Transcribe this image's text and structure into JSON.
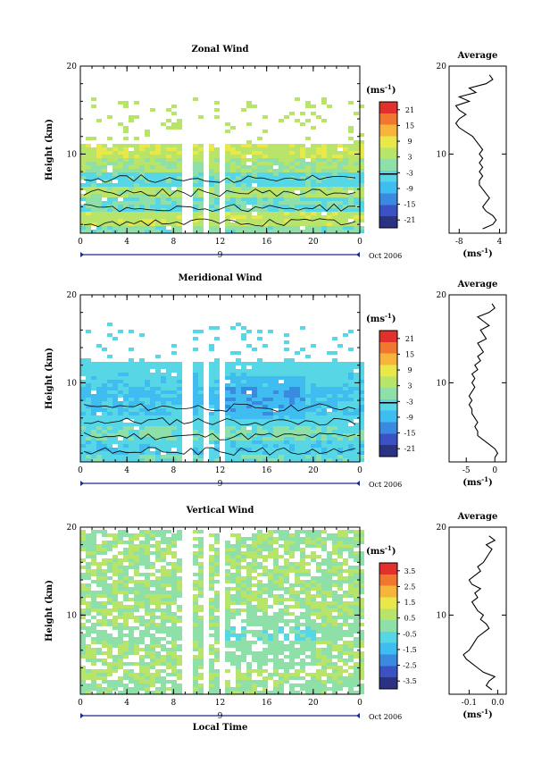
{
  "chart_data": [
    {
      "type": "heatmap",
      "title": "Zonal Wind",
      "xlabel": "",
      "ylabel": "Height (km)",
      "x_ticks": [
        "0",
        "4",
        "8",
        "12",
        "16",
        "20",
        "0"
      ],
      "xlim": [
        0,
        24
      ],
      "y_ticks": [
        "10",
        "20"
      ],
      "ylim": [
        1,
        20
      ],
      "day_marker": "9",
      "date_label": "Oct 2006",
      "colorbar": {
        "unit": "(ms",
        "unit_exp": "-1",
        "unit_close": ")",
        "ticks": [
          "21",
          "15",
          "9",
          "3",
          "-3",
          "-9",
          "-15",
          "-21"
        ],
        "range": [
          -24,
          24
        ],
        "highlight": 0
      },
      "profile": {
        "title": "Average",
        "xlabel": "(ms",
        "xlabel_exp": "-1",
        "xlabel_close": ")",
        "x_ticks": [
          "-8",
          "4"
        ],
        "x_tick_values": [
          -8,
          4
        ],
        "xlim": [
          -11,
          6
        ],
        "y_ticks": [
          "10",
          "20"
        ],
        "heights": [
          1.5,
          2.0,
          2.5,
          3.0,
          3.5,
          4.0,
          4.5,
          5.0,
          5.5,
          6.0,
          6.5,
          7.0,
          7.5,
          8.0,
          8.5,
          9.0,
          9.5,
          10.0,
          10.5,
          11.0,
          11.5,
          12.0,
          12.5,
          13.0,
          13.5,
          14.0,
          14.5,
          15.0,
          15.5,
          16.0,
          16.5,
          17.0,
          17.5,
          18.0,
          18.5,
          19.0
        ],
        "values": [
          -1,
          2,
          3,
          2,
          0,
          -1,
          0,
          1,
          0,
          -1,
          -2,
          -2,
          -1,
          -2,
          -1,
          -2,
          -1,
          -2,
          -1,
          -2,
          -3,
          -4,
          -6,
          -8,
          -9,
          -8,
          -6,
          -8,
          -9,
          -5,
          -8,
          -3,
          -5,
          0,
          2,
          1
        ]
      }
    },
    {
      "type": "heatmap",
      "title": "Meridional Wind",
      "xlabel": "",
      "ylabel": "Height (km)",
      "x_ticks": [
        "0",
        "4",
        "8",
        "12",
        "16",
        "20",
        "0"
      ],
      "xlim": [
        0,
        24
      ],
      "y_ticks": [
        "10",
        "20"
      ],
      "ylim": [
        1,
        20
      ],
      "day_marker": "9",
      "date_label": "Oct 2006",
      "colorbar": {
        "unit": "(ms",
        "unit_exp": "-1",
        "unit_close": ")",
        "ticks": [
          "21",
          "15",
          "9",
          "3",
          "-3",
          "-9",
          "-15",
          "-21"
        ],
        "range": [
          -24,
          24
        ],
        "highlight": 0
      },
      "profile": {
        "title": "Average",
        "xlabel": "(ms",
        "xlabel_exp": "-1",
        "xlabel_close": ")",
        "x_ticks": [
          "-5",
          "0"
        ],
        "x_tick_values": [
          -5,
          0
        ],
        "xlim": [
          -8,
          2
        ],
        "y_ticks": [
          "10",
          "20"
        ],
        "heights": [
          1.5,
          2.0,
          2.5,
          3.0,
          3.5,
          4.0,
          4.5,
          5.0,
          5.5,
          6.0,
          6.5,
          7.0,
          7.5,
          8.0,
          8.5,
          9.0,
          9.5,
          10.0,
          10.5,
          11.0,
          11.5,
          12.0,
          12.5,
          13.0,
          13.5,
          14.0,
          14.5,
          15.0,
          15.5,
          16.0,
          16.5,
          17.0,
          17.5,
          18.0,
          18.5,
          19.0
        ],
        "values": [
          0,
          0.5,
          0,
          -1,
          -2,
          -3,
          -3,
          -3.5,
          -3,
          -3.5,
          -4,
          -4,
          -4.5,
          -4,
          -4.5,
          -4,
          -3.5,
          -4,
          -3.5,
          -4,
          -3,
          -3.5,
          -2.5,
          -3,
          -2,
          -2.5,
          -3,
          -1.5,
          -2,
          -2.5,
          -1,
          -2,
          -3,
          -1,
          0,
          -0.5
        ]
      }
    },
    {
      "type": "heatmap",
      "title": "Vertical Wind",
      "xlabel": "Local Time",
      "ylabel": "Height (km)",
      "x_ticks": [
        "0",
        "4",
        "8",
        "12",
        "16",
        "20",
        "0"
      ],
      "xlim": [
        0,
        24
      ],
      "y_ticks": [
        "10",
        "20"
      ],
      "ylim": [
        1,
        20
      ],
      "day_marker": "9",
      "date_label": "Oct 2006",
      "colorbar": {
        "unit": "(ms",
        "unit_exp": "-1",
        "unit_close": ")",
        "ticks": [
          "3.5",
          "2.5",
          "1.5",
          "0.5",
          "-0.5",
          "-1.5",
          "-2.5",
          "-3.5"
        ],
        "range": [
          -4,
          4
        ],
        "highlight": null
      },
      "profile": {
        "title": "Average",
        "xlabel": "(ms",
        "xlabel_exp": "-1",
        "xlabel_close": ")",
        "x_ticks": [
          "-0.1",
          "0.0"
        ],
        "x_tick_values": [
          -0.1,
          0.0
        ],
        "xlim": [
          -0.17,
          0.03
        ],
        "y_ticks": [
          "10",
          "20"
        ],
        "heights": [
          1.5,
          2.0,
          2.5,
          3.0,
          3.5,
          4.0,
          4.5,
          5.0,
          5.5,
          6.0,
          6.5,
          7.0,
          7.5,
          8.0,
          8.5,
          9.0,
          9.5,
          10.0,
          10.5,
          11.0,
          11.5,
          12.0,
          12.5,
          13.0,
          13.5,
          14.0,
          14.5,
          15.0,
          15.5,
          16.0,
          16.5,
          17.0,
          17.5,
          18.0,
          18.5,
          19.0
        ],
        "values": [
          -0.02,
          -0.04,
          -0.03,
          -0.01,
          -0.05,
          -0.07,
          -0.09,
          -0.11,
          -0.12,
          -0.1,
          -0.09,
          -0.08,
          -0.07,
          -0.05,
          -0.03,
          -0.04,
          -0.06,
          -0.05,
          -0.07,
          -0.08,
          -0.09,
          -0.07,
          -0.08,
          -0.06,
          -0.09,
          -0.1,
          -0.08,
          -0.06,
          -0.07,
          -0.05,
          -0.04,
          -0.03,
          -0.02,
          -0.04,
          -0.01,
          -0.03
        ]
      }
    }
  ]
}
